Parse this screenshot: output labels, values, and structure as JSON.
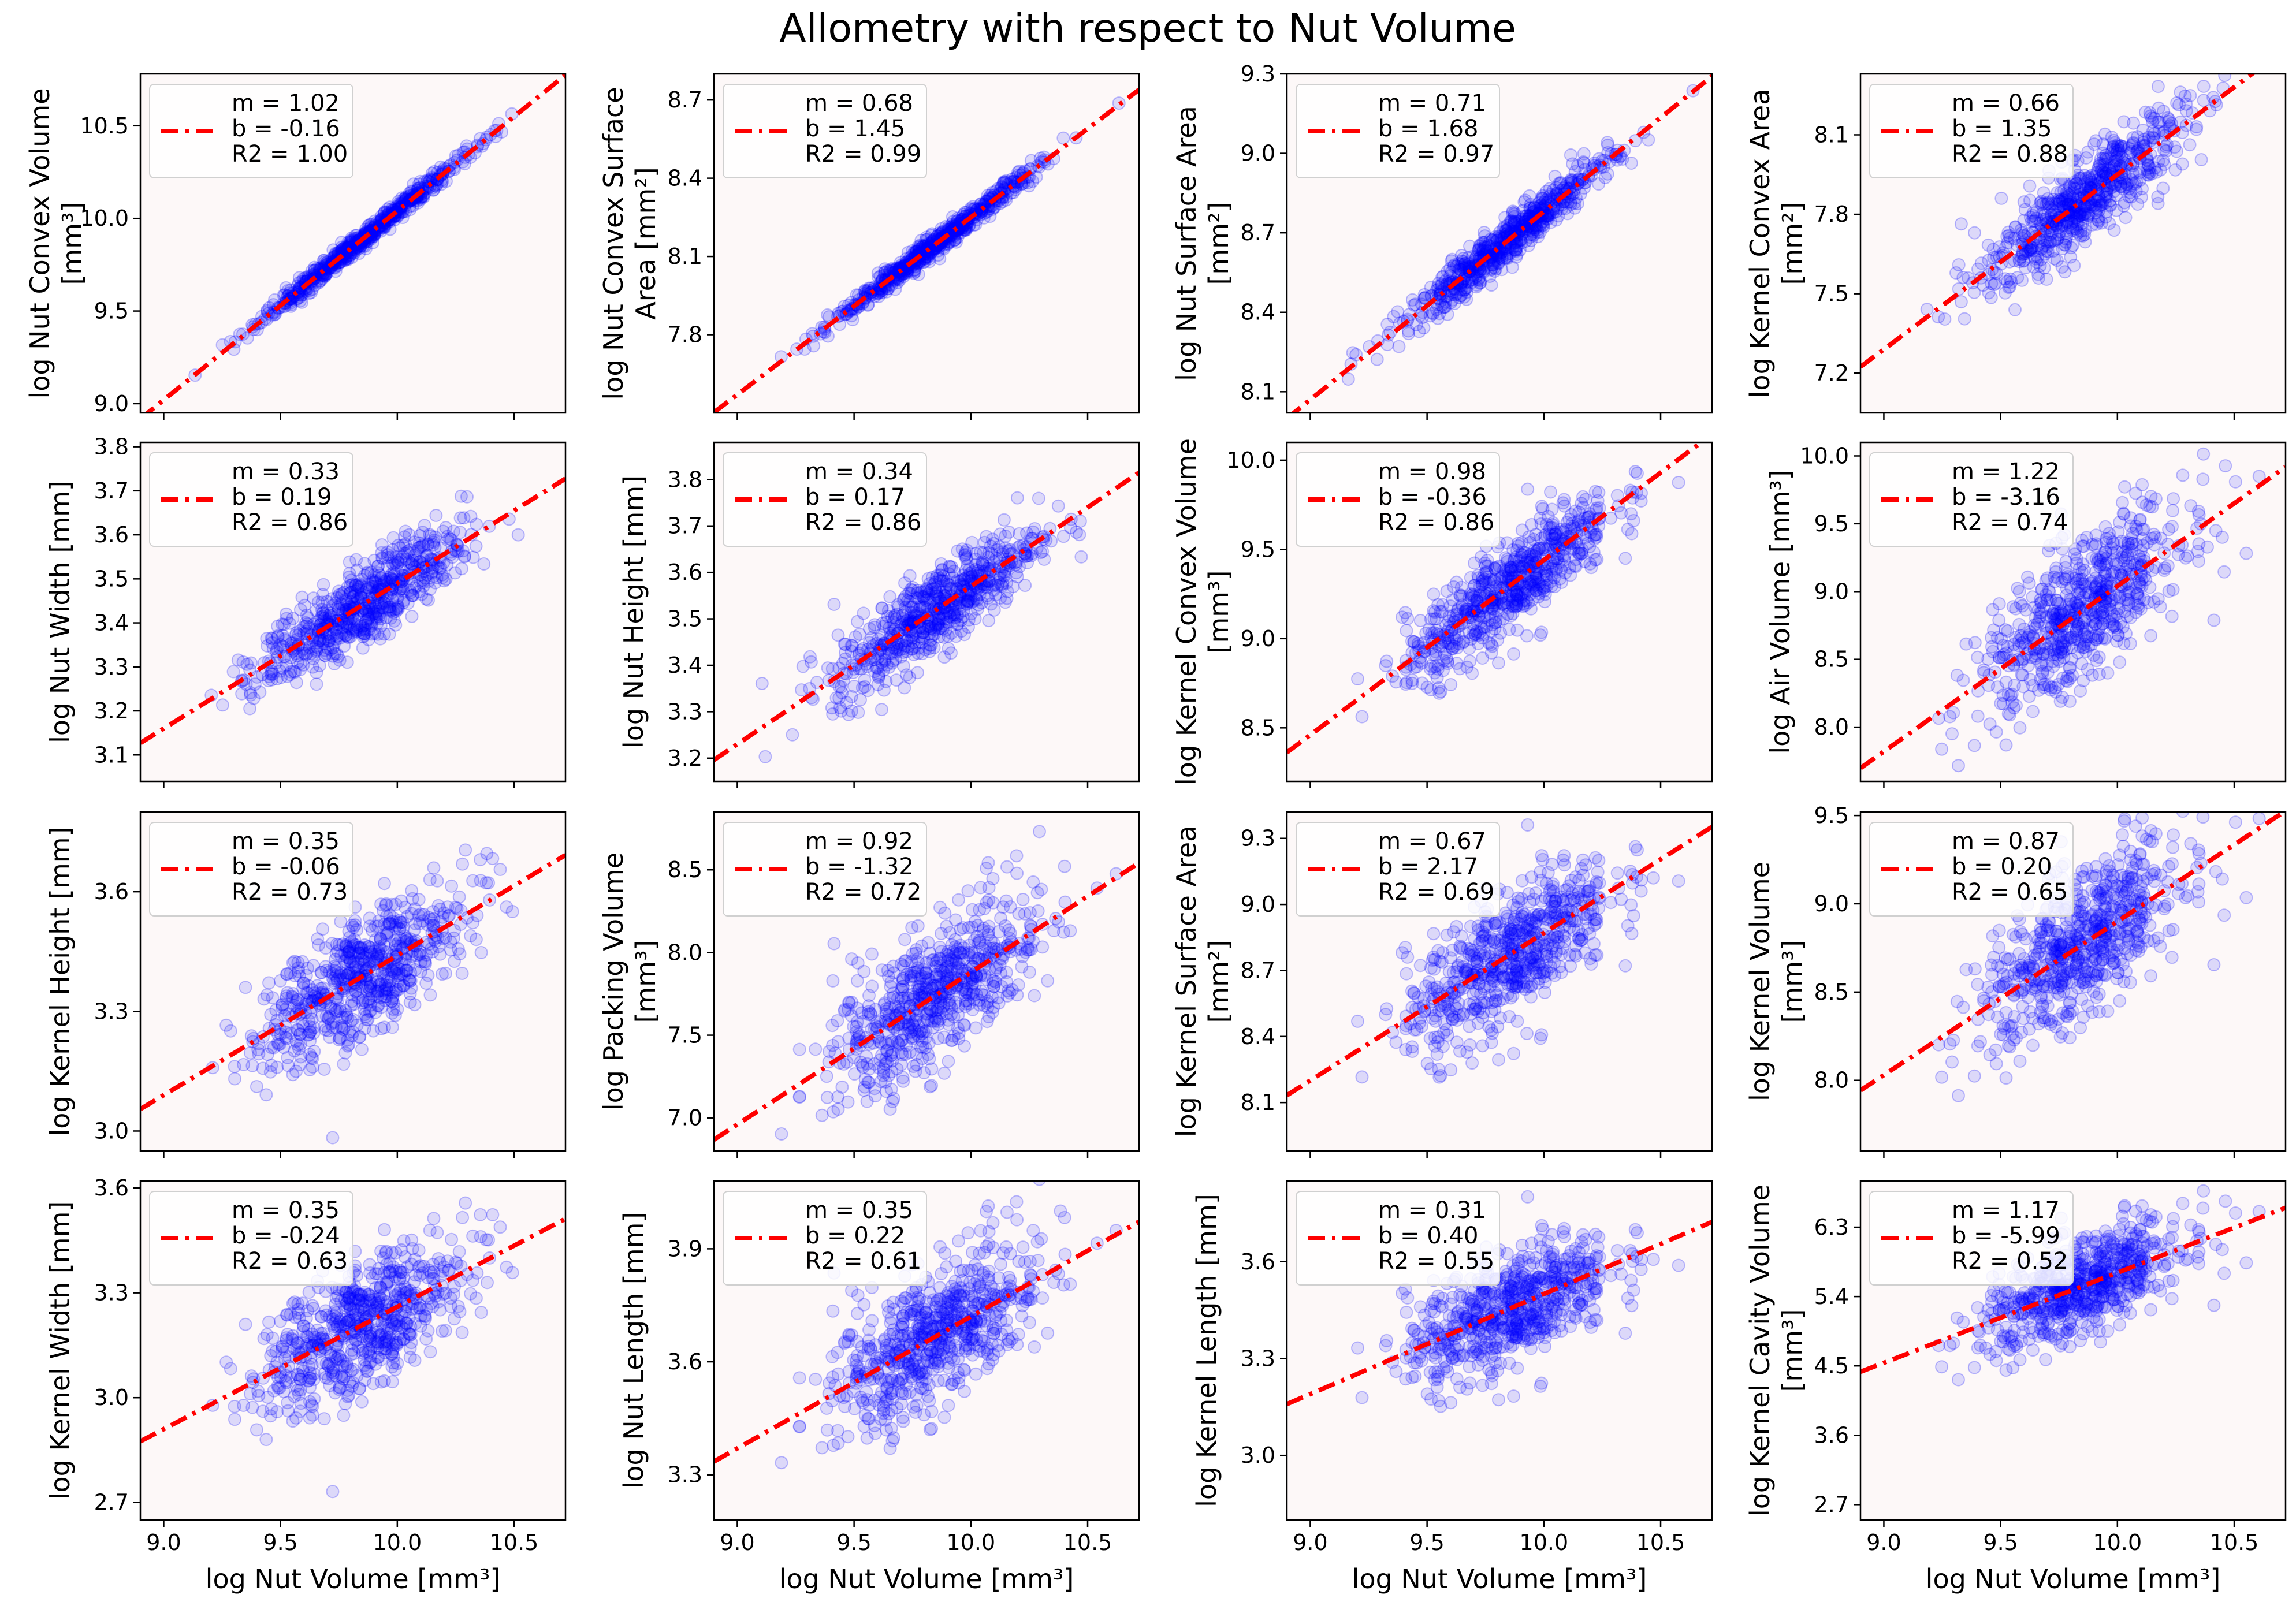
{
  "title": "Allometry with respect to Nut Volume",
  "chart_data": {
    "type": "scatter",
    "title": "Allometry with respect to Nut Volume",
    "layout": "4x4 grid, shared x-axis",
    "xlabel": "log Nut Volume [mm³]",
    "xlim": [
      8.9,
      10.72
    ],
    "xticks": [
      "9.0",
      "9.5",
      "10.0",
      "10.5"
    ],
    "point_color": "#0000ff",
    "fit_line_color": "#ff0000",
    "fit_line_style": "dash-dot",
    "panel_background": "#fdf8f8",
    "legend_position": "upper-left",
    "series": [
      {
        "ylabel": [
          "log Nut Convex Volume",
          "[mm³]"
        ],
        "m": 1.02,
        "b": -0.16,
        "r2": 1.0,
        "legend": [
          "m = 1.02",
          "b = -0.16",
          "R2 = 1.00"
        ],
        "ylim": [
          8.95,
          10.78
        ],
        "yticks": [
          "9.0",
          "9.5",
          "10.0",
          "10.5"
        ],
        "spread": 0.025
      },
      {
        "ylabel": [
          "log Nut Convex Surface",
          "Area [mm²]"
        ],
        "m": 0.68,
        "b": 1.45,
        "r2": 0.99,
        "legend": [
          "m = 0.68",
          "b = 1.45",
          "R2 = 0.99"
        ],
        "ylim": [
          7.5,
          8.8
        ],
        "yticks": [
          "7.8",
          "8.1",
          "8.4",
          "8.7"
        ],
        "spread": 0.02
      },
      {
        "ylabel": [
          "log Nut Surface Area",
          "[mm²]"
        ],
        "m": 0.71,
        "b": 1.68,
        "r2": 0.97,
        "legend": [
          "m = 0.71",
          "b = 1.68",
          "R2 = 0.97"
        ],
        "ylim": [
          8.02,
          9.3
        ],
        "yticks": [
          "8.1",
          "8.4",
          "8.7",
          "9.0",
          "9.3"
        ],
        "spread": 0.04
      },
      {
        "ylabel": [
          "log Kernel Convex Area",
          "[mm²]"
        ],
        "m": 0.66,
        "b": 1.35,
        "r2": 0.88,
        "legend": [
          "m = 0.66",
          "b = 1.35",
          "R2 = 0.88"
        ],
        "ylim": [
          7.05,
          8.33
        ],
        "yticks": [
          "7.2",
          "7.5",
          "7.8",
          "8.1"
        ],
        "spread": 0.08
      },
      {
        "ylabel": [
          "log Nut Width [mm]"
        ],
        "m": 0.33,
        "b": 0.19,
        "r2": 0.86,
        "legend": [
          "m = 0.33",
          "b = 0.19",
          "R2 = 0.86"
        ],
        "ylim": [
          3.04,
          3.81
        ],
        "yticks": [
          "3.1",
          "3.2",
          "3.3",
          "3.4",
          "3.5",
          "3.6",
          "3.7",
          "3.8"
        ],
        "spread": 0.045
      },
      {
        "ylabel": [
          "log Nut Height [mm]"
        ],
        "m": 0.34,
        "b": 0.17,
        "r2": 0.86,
        "legend": [
          "m = 0.34",
          "b = 0.17",
          "R2 = 0.86"
        ],
        "ylim": [
          3.15,
          3.88
        ],
        "yticks": [
          "3.2",
          "3.3",
          "3.4",
          "3.5",
          "3.6",
          "3.7",
          "3.8"
        ],
        "spread": 0.045
      },
      {
        "ylabel": [
          "log Kernel Convex Volume",
          "[mm³]"
        ],
        "m": 0.98,
        "b": -0.36,
        "r2": 0.86,
        "legend": [
          "m = 0.98",
          "b = -0.36",
          "R2 = 0.86"
        ],
        "ylim": [
          8.2,
          10.1
        ],
        "yticks": [
          "8.5",
          "9.0",
          "9.5",
          "10.0"
        ],
        "spread": 0.13
      },
      {
        "ylabel": [
          "log Air Volume [mm³]"
        ],
        "m": 1.22,
        "b": -3.16,
        "r2": 0.74,
        "legend": [
          "m = 1.22",
          "b = -3.16",
          "R2 = 0.74"
        ],
        "ylim": [
          7.6,
          10.1
        ],
        "yticks": [
          "8.0",
          "8.5",
          "9.0",
          "9.5",
          "10.0"
        ],
        "spread": 0.25
      },
      {
        "ylabel": [
          "log Kernel Height [mm]"
        ],
        "m": 0.35,
        "b": -0.06,
        "r2": 0.73,
        "legend": [
          "m = 0.35",
          "b = -0.06",
          "R2 = 0.73"
        ],
        "ylim": [
          2.95,
          3.8
        ],
        "yticks": [
          "3.0",
          "3.3",
          "3.6"
        ],
        "spread": 0.075
      },
      {
        "ylabel": [
          "log Packing Volume",
          "[mm³]"
        ],
        "m": 0.92,
        "b": -1.32,
        "r2": 0.72,
        "legend": [
          "m = 0.92",
          "b = -1.32",
          "R2 = 0.72"
        ],
        "ylim": [
          6.8,
          8.85
        ],
        "yticks": [
          "7.0",
          "7.5",
          "8.0",
          "8.5"
        ],
        "spread": 0.2
      },
      {
        "ylabel": [
          "log Kernel Surface Area",
          "[mm²]"
        ],
        "m": 0.67,
        "b": 2.17,
        "r2": 0.69,
        "legend": [
          "m = 0.67",
          "b = 2.17",
          "R2 = 0.69"
        ],
        "ylim": [
          7.88,
          9.42
        ],
        "yticks": [
          "8.1",
          "8.4",
          "8.7",
          "9.0",
          "9.3"
        ],
        "spread": 0.15
      },
      {
        "ylabel": [
          "log Kernel Volume",
          "[mm³]"
        ],
        "m": 0.87,
        "b": 0.2,
        "r2": 0.65,
        "legend": [
          "m = 0.87",
          "b = 0.20",
          "R2 = 0.65"
        ],
        "ylim": [
          7.6,
          9.52
        ],
        "yticks": [
          "8.0",
          "8.5",
          "9.0",
          "9.5"
        ],
        "spread": 0.2
      },
      {
        "ylabel": [
          "log Kernel Width [mm]"
        ],
        "m": 0.35,
        "b": -0.24,
        "r2": 0.63,
        "legend": [
          "m = 0.35",
          "b = -0.24",
          "R2 = 0.63"
        ],
        "ylim": [
          2.65,
          3.62
        ],
        "yticks": [
          "2.7",
          "3.0",
          "3.3",
          "3.6"
        ],
        "spread": 0.09
      },
      {
        "ylabel": [
          "log Nut Length [mm]"
        ],
        "m": 0.35,
        "b": 0.22,
        "r2": 0.61,
        "legend": [
          "m = 0.35",
          "b = 0.22",
          "R2 = 0.61"
        ],
        "ylim": [
          3.18,
          4.08
        ],
        "yticks": [
          "3.3",
          "3.6",
          "3.9"
        ],
        "spread": 0.09
      },
      {
        "ylabel": [
          "log Kernel Length [mm]"
        ],
        "m": 0.31,
        "b": 0.4,
        "r2": 0.55,
        "legend": [
          "m = 0.31",
          "b = 0.40",
          "R2 = 0.55"
        ],
        "ylim": [
          2.8,
          3.85
        ],
        "yticks": [
          "3.0",
          "3.3",
          "3.6"
        ],
        "spread": 0.09
      },
      {
        "ylabel": [
          "log Kernel Cavity Volume",
          "[mm³]"
        ],
        "m": 1.17,
        "b": -5.99,
        "r2": 0.52,
        "legend": [
          "m = 1.17",
          "b = -5.99",
          "R2 = 0.52"
        ],
        "ylim": [
          2.5,
          6.9
        ],
        "yticks": [
          "2.7",
          "3.6",
          "4.5",
          "5.4",
          "6.3"
        ],
        "spread": 0.3
      }
    ]
  }
}
